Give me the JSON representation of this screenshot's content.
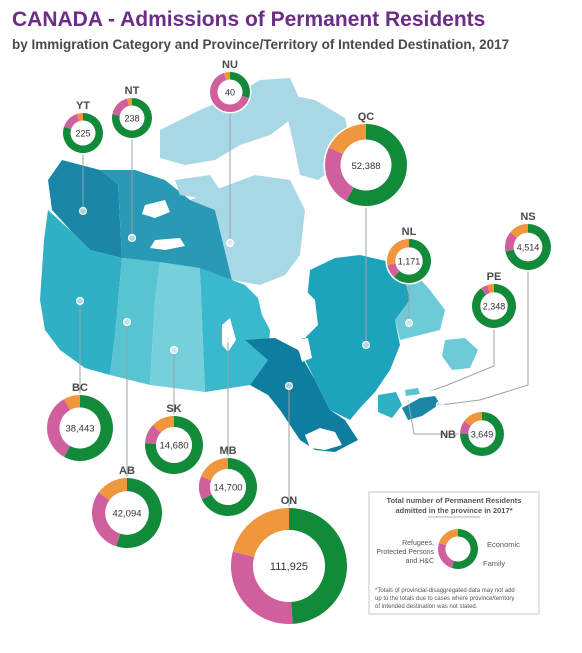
{
  "title": "CANADA - Admissions of Permanent Residents",
  "subtitle": "by Immigration Category and Province/Territory of Intended Destination, 2017",
  "colors": {
    "economic": "#128a3a",
    "family": "#d05f9e",
    "refugee": "#f0963c",
    "leader": "#9aa4aa",
    "water": "#ffffff"
  },
  "regions": [
    {
      "code": "YT",
      "value": "225",
      "economic": 0.8,
      "family": 0.15,
      "refugee": 0.05
    },
    {
      "code": "NT",
      "value": "238",
      "economic": 0.78,
      "family": 0.18,
      "refugee": 0.04
    },
    {
      "code": "NU",
      "value": "40",
      "economic": 0.3,
      "family": 0.65,
      "refugee": 0.05
    },
    {
      "code": "QC",
      "value": "52,388",
      "economic": 0.58,
      "family": 0.24,
      "refugee": 0.18
    },
    {
      "code": "NL",
      "value": "1,171",
      "economic": 0.62,
      "family": 0.1,
      "refugee": 0.28
    },
    {
      "code": "NS",
      "value": "4,514",
      "economic": 0.72,
      "family": 0.14,
      "refugee": 0.14
    },
    {
      "code": "PE",
      "value": "2,348",
      "economic": 0.9,
      "family": 0.05,
      "refugee": 0.05
    },
    {
      "code": "NB",
      "value": "3,649",
      "economic": 0.75,
      "family": 0.1,
      "refugee": 0.15
    },
    {
      "code": "BC",
      "value": "38,443",
      "economic": 0.58,
      "family": 0.34,
      "refugee": 0.08
    },
    {
      "code": "AB",
      "value": "42,094",
      "economic": 0.55,
      "family": 0.3,
      "refugee": 0.15
    },
    {
      "code": "SK",
      "value": "14,680",
      "economic": 0.76,
      "family": 0.11,
      "refugee": 0.13
    },
    {
      "code": "MB",
      "value": "14,700",
      "economic": 0.68,
      "family": 0.13,
      "refugee": 0.19
    },
    {
      "code": "ON",
      "value": "111,925",
      "economic": 0.49,
      "family": 0.3,
      "refugee": 0.21
    }
  ],
  "legend": {
    "title_line1": "Total number of Permanent Residents",
    "title_line2": "admitted in the province in 2017*",
    "economic_label": "Economic",
    "family_label": "Family",
    "refugee_line1": "Refugees,",
    "refugee_line2": "Protected Persons",
    "refugee_line3": "and H&C",
    "footnote_line1": "*Totals of provincial-disaggregated data may not add",
    "footnote_line2": "up to the totals due to cases where province/territory",
    "footnote_line3": "of intended destination was not stated."
  }
}
